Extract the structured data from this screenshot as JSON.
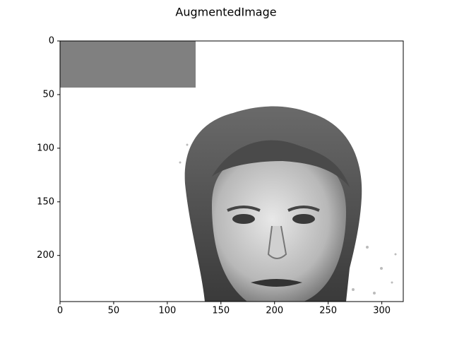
{
  "chart_data": {
    "type": "image",
    "title": "AugmentedImage",
    "xlim": [
      0,
      320
    ],
    "ylim": [
      243,
      0
    ],
    "xticks": [
      0,
      50,
      100,
      150,
      200,
      250,
      300
    ],
    "yticks": [
      0,
      50,
      100,
      150,
      200
    ]
  }
}
